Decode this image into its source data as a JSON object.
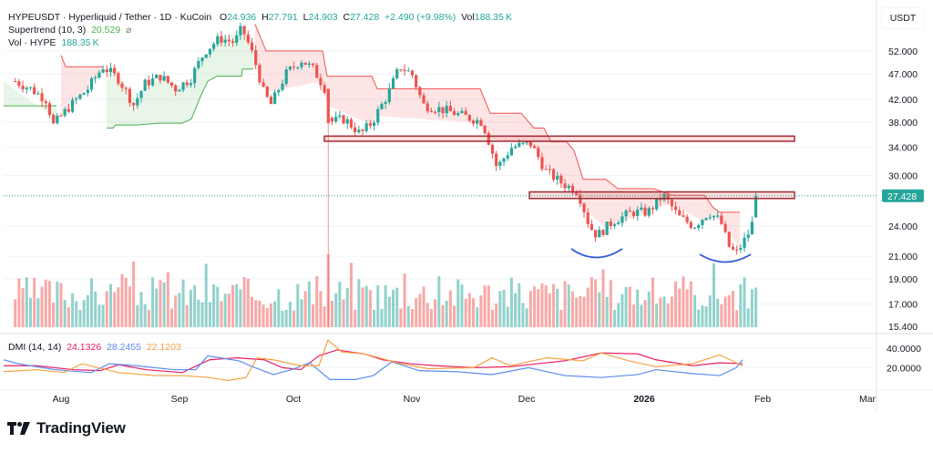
{
  "header": {
    "symbol": "HYPEUSDT",
    "name": "Hyperliquid / Tether",
    "interval": "1D",
    "exchange": "KuCoin",
    "open_label": "O",
    "open": "24.936",
    "high_label": "H",
    "high": "27.791",
    "low_label": "L",
    "low": "24.903",
    "close_label": "C",
    "close": "27.428",
    "change": "+2.490 (+9.98%)",
    "vol_label": "Vol",
    "vol": "188.35 K"
  },
  "indicators": {
    "supertrend_label": "Supertrend (10, 3)",
    "supertrend_value": "20.529",
    "supertrend_icon": "⌀",
    "volume_label": "Vol · HYPE",
    "volume_value": "188.35 K",
    "dmi_label": "DMI (14, 14)",
    "dmi_plus": "24.1326",
    "dmi_minus": "28.2455",
    "dmi_adx": "22.1203"
  },
  "price_axis": {
    "currency": "USDT",
    "ticks": [
      "52.000",
      "47.000",
      "42.000",
      "38.000",
      "34.000",
      "30.000",
      "24.000",
      "21.000",
      "19.000",
      "17.000",
      "15.400"
    ],
    "current_price": "27.428"
  },
  "dmi_axis": {
    "ticks": [
      "40.0000",
      "20.0000"
    ]
  },
  "time_axis": {
    "labels": [
      "Aug",
      "Sep",
      "Oct",
      "Nov",
      "Dec",
      "2026",
      "Feb",
      "Mar"
    ]
  },
  "branding": {
    "name": "TradingView"
  },
  "colors": {
    "up": "#26a69a",
    "down": "#ef5350",
    "supertrend_up": "#4caf50",
    "supertrend_down": "#ef5350",
    "dmi_plus": "#e91e63",
    "dmi_minus": "#5b8def",
    "dmi_adx": "#f5a142",
    "zone": "#9c2b36",
    "arc": "#2f5bd6"
  },
  "chart_data": {
    "type": "candlestick",
    "title": "HYPEUSDT · Hyperliquid / Tether · 1D · KuCoin",
    "scale": "log",
    "ylim": [
      15.4,
      56
    ],
    "x_labels": [
      "Aug",
      "Sep",
      "Oct",
      "Nov",
      "Dec",
      "2026",
      "Feb",
      "Mar"
    ],
    "close_path": [
      {
        "d": "Jul 20",
        "c": 45.5
      },
      {
        "d": "Jul 24",
        "c": 44.0
      },
      {
        "d": "Jul 28",
        "c": 42.0
      },
      {
        "d": "Jul 30",
        "c": 37.5
      },
      {
        "d": "Aug 3",
        "c": 40.5
      },
      {
        "d": "Aug 8",
        "c": 44.0
      },
      {
        "d": "Aug 12",
        "c": 48.5
      },
      {
        "d": "Aug 16",
        "c": 46.0
      },
      {
        "d": "Aug 20",
        "c": 41.0
      },
      {
        "d": "Aug 23",
        "c": 45.0
      },
      {
        "d": "Aug 27",
        "c": 46.5
      },
      {
        "d": "Aug 31",
        "c": 44.0
      },
      {
        "d": "Sep 4",
        "c": 46.0
      },
      {
        "d": "Sep 8",
        "c": 52.0
      },
      {
        "d": "Sep 12",
        "c": 55.0
      },
      {
        "d": "Sep 16",
        "c": 54.0
      },
      {
        "d": "Sep 18",
        "c": 57.5
      },
      {
        "d": "Sep 21",
        "c": 51.0
      },
      {
        "d": "Sep 24",
        "c": 43.0
      },
      {
        "d": "Sep 26",
        "c": 41.0
      },
      {
        "d": "Sep 30",
        "c": 47.0
      },
      {
        "d": "Oct 3",
        "c": 50.0
      },
      {
        "d": "Oct 6",
        "c": 48.0
      },
      {
        "d": "Oct 9",
        "c": 44.0
      },
      {
        "d": "Oct 10",
        "c": 38.0
      },
      {
        "d": "Oct 14",
        "c": 38.5
      },
      {
        "d": "Oct 18",
        "c": 36.0
      },
      {
        "d": "Oct 21",
        "c": 38.0
      },
      {
        "d": "Oct 25",
        "c": 43.0
      },
      {
        "d": "Oct 28",
        "c": 48.5
      },
      {
        "d": "Nov 1",
        "c": 47.0
      },
      {
        "d": "Nov 4",
        "c": 41.0
      },
      {
        "d": "Nov 10",
        "c": 40.0
      },
      {
        "d": "Nov 15",
        "c": 39.0
      },
      {
        "d": "Nov 20",
        "c": 38.0
      },
      {
        "d": "Nov 24",
        "c": 31.0
      },
      {
        "d": "Nov 28",
        "c": 34.0
      },
      {
        "d": "Dec 2",
        "c": 34.5
      },
      {
        "d": "Dec 6",
        "c": 30.5
      },
      {
        "d": "Dec 10",
        "c": 29.0
      },
      {
        "d": "Dec 14",
        "c": 28.0
      },
      {
        "d": "Dec 17",
        "c": 24.0
      },
      {
        "d": "Dec 19",
        "c": 23.0
      },
      {
        "d": "Dec 23",
        "c": 24.5
      },
      {
        "d": "Dec 28",
        "c": 25.5
      },
      {
        "d": "Jan 2",
        "c": 25.5
      },
      {
        "d": "Jan 6",
        "c": 27.5
      },
      {
        "d": "Jan 10",
        "c": 25.0
      },
      {
        "d": "Jan 14",
        "c": 24.0
      },
      {
        "d": "Jan 18",
        "c": 25.5
      },
      {
        "d": "Jan 21",
        "c": 24.5
      },
      {
        "d": "Jan 23",
        "c": 22.0
      },
      {
        "d": "Jan 25",
        "c": 21.2
      },
      {
        "d": "Jan 28",
        "c": 23.0
      },
      {
        "d": "Jan 30",
        "c": 25.0
      },
      {
        "d": "Jan 31",
        "c": 27.428
      }
    ],
    "supertrend": {
      "last_value": 20.529,
      "period": 10,
      "multiplier": 3
    },
    "resistance_zones": [
      {
        "low": 34.9,
        "high": 35.7
      },
      {
        "low": 27.1,
        "high": 27.9
      }
    ],
    "volume": {
      "last": "188.35K"
    },
    "dmi": {
      "ylim": [
        0,
        50
      ],
      "ticks": [
        40,
        20
      ],
      "plus_di_last": 24.1326,
      "minus_di_last": 28.2455,
      "adx_last": 22.1203
    }
  }
}
